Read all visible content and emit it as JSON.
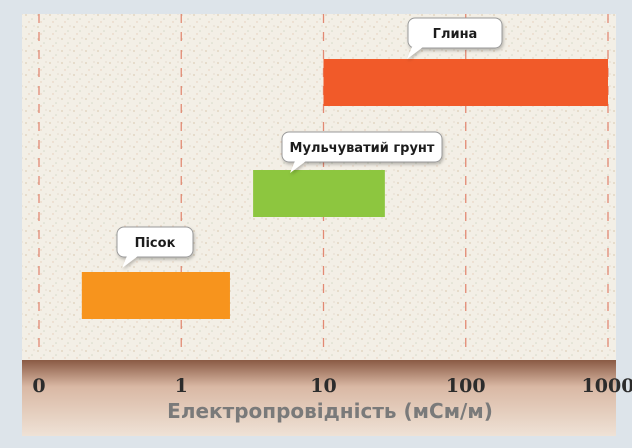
{
  "chart_data": {
    "type": "range-bar",
    "x_scale": "log",
    "xlim": [
      0.1,
      1000
    ],
    "xticks": [
      {
        "value": 0.1,
        "label": "0"
      },
      {
        "value": 1,
        "label": "1"
      },
      {
        "value": 10,
        "label": "10"
      },
      {
        "value": 100,
        "label": "100"
      },
      {
        "value": 1000,
        "label": "1000"
      }
    ],
    "xlabel": "Електропровідність (мСм/м)",
    "grid": "vertical dashed",
    "bars": [
      {
        "label": "Пісок",
        "start": 0.2,
        "end": 2.2,
        "color": "#f7941d"
      },
      {
        "label": "Мульчуватий грунт",
        "start": 3.2,
        "end": 27,
        "color": "#8dc63f"
      },
      {
        "label": "Глина",
        "start": 10,
        "end": 1000,
        "color": "#f15a29"
      }
    ]
  },
  "colors": {
    "background": "#f3efe6",
    "border": "#dde4ea",
    "grid": "#e07860",
    "axis_band_top": "#8a5a44",
    "axis_band_bottom": "#efe2d6",
    "tick_label": "#2c2c2c",
    "axis_label": "#7a7a7a",
    "callout_fill": "#ffffff",
    "callout_stroke": "#9a9a9a"
  }
}
